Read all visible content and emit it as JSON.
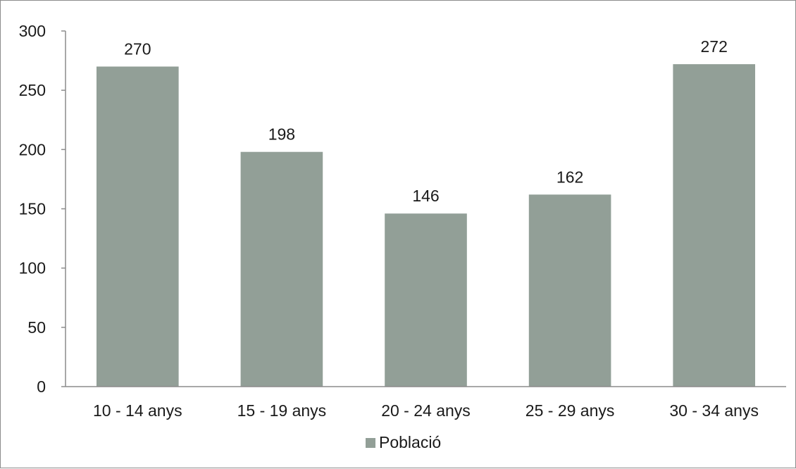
{
  "chart_data": {
    "type": "bar",
    "categories": [
      "10 - 14 anys",
      "15 - 19 anys",
      "20 - 24 anys",
      "25 - 29 anys",
      "30 - 34 anys"
    ],
    "series": [
      {
        "name": "Població",
        "values": [
          270,
          198,
          146,
          162,
          272
        ],
        "color": "#929f97"
      }
    ],
    "ylim": [
      0,
      300
    ],
    "yticks": [
      0,
      50,
      100,
      150,
      200,
      250,
      300
    ],
    "grid": false,
    "data_labels": true,
    "legend": {
      "position": "bottom",
      "entries": [
        "Població"
      ]
    },
    "title": "",
    "xlabel": "",
    "ylabel": ""
  }
}
